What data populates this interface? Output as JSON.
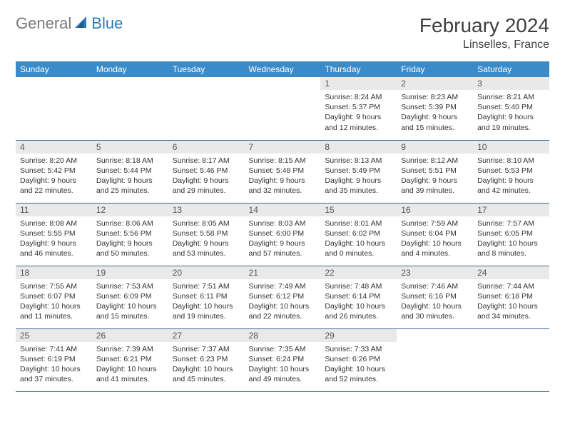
{
  "logo": {
    "part1": "General",
    "part2": "Blue"
  },
  "title": "February 2024",
  "location": "Linselles, France",
  "colors": {
    "header_bg": "#3b8bc8",
    "header_text": "#ffffff",
    "daynum_bg": "#e9e9e9",
    "border": "#3b6a93",
    "logo_gray": "#7a7a7a",
    "logo_blue": "#2b7bb9"
  },
  "day_headers": [
    "Sunday",
    "Monday",
    "Tuesday",
    "Wednesday",
    "Thursday",
    "Friday",
    "Saturday"
  ],
  "weeks": [
    [
      null,
      null,
      null,
      null,
      {
        "n": "1",
        "sr": "Sunrise: 8:24 AM",
        "ss": "Sunset: 5:37 PM",
        "d1": "Daylight: 9 hours",
        "d2": "and 12 minutes."
      },
      {
        "n": "2",
        "sr": "Sunrise: 8:23 AM",
        "ss": "Sunset: 5:39 PM",
        "d1": "Daylight: 9 hours",
        "d2": "and 15 minutes."
      },
      {
        "n": "3",
        "sr": "Sunrise: 8:21 AM",
        "ss": "Sunset: 5:40 PM",
        "d1": "Daylight: 9 hours",
        "d2": "and 19 minutes."
      }
    ],
    [
      {
        "n": "4",
        "sr": "Sunrise: 8:20 AM",
        "ss": "Sunset: 5:42 PM",
        "d1": "Daylight: 9 hours",
        "d2": "and 22 minutes."
      },
      {
        "n": "5",
        "sr": "Sunrise: 8:18 AM",
        "ss": "Sunset: 5:44 PM",
        "d1": "Daylight: 9 hours",
        "d2": "and 25 minutes."
      },
      {
        "n": "6",
        "sr": "Sunrise: 8:17 AM",
        "ss": "Sunset: 5:46 PM",
        "d1": "Daylight: 9 hours",
        "d2": "and 29 minutes."
      },
      {
        "n": "7",
        "sr": "Sunrise: 8:15 AM",
        "ss": "Sunset: 5:48 PM",
        "d1": "Daylight: 9 hours",
        "d2": "and 32 minutes."
      },
      {
        "n": "8",
        "sr": "Sunrise: 8:13 AM",
        "ss": "Sunset: 5:49 PM",
        "d1": "Daylight: 9 hours",
        "d2": "and 35 minutes."
      },
      {
        "n": "9",
        "sr": "Sunrise: 8:12 AM",
        "ss": "Sunset: 5:51 PM",
        "d1": "Daylight: 9 hours",
        "d2": "and 39 minutes."
      },
      {
        "n": "10",
        "sr": "Sunrise: 8:10 AM",
        "ss": "Sunset: 5:53 PM",
        "d1": "Daylight: 9 hours",
        "d2": "and 42 minutes."
      }
    ],
    [
      {
        "n": "11",
        "sr": "Sunrise: 8:08 AM",
        "ss": "Sunset: 5:55 PM",
        "d1": "Daylight: 9 hours",
        "d2": "and 46 minutes."
      },
      {
        "n": "12",
        "sr": "Sunrise: 8:06 AM",
        "ss": "Sunset: 5:56 PM",
        "d1": "Daylight: 9 hours",
        "d2": "and 50 minutes."
      },
      {
        "n": "13",
        "sr": "Sunrise: 8:05 AM",
        "ss": "Sunset: 5:58 PM",
        "d1": "Daylight: 9 hours",
        "d2": "and 53 minutes."
      },
      {
        "n": "14",
        "sr": "Sunrise: 8:03 AM",
        "ss": "Sunset: 6:00 PM",
        "d1": "Daylight: 9 hours",
        "d2": "and 57 minutes."
      },
      {
        "n": "15",
        "sr": "Sunrise: 8:01 AM",
        "ss": "Sunset: 6:02 PM",
        "d1": "Daylight: 10 hours",
        "d2": "and 0 minutes."
      },
      {
        "n": "16",
        "sr": "Sunrise: 7:59 AM",
        "ss": "Sunset: 6:04 PM",
        "d1": "Daylight: 10 hours",
        "d2": "and 4 minutes."
      },
      {
        "n": "17",
        "sr": "Sunrise: 7:57 AM",
        "ss": "Sunset: 6:05 PM",
        "d1": "Daylight: 10 hours",
        "d2": "and 8 minutes."
      }
    ],
    [
      {
        "n": "18",
        "sr": "Sunrise: 7:55 AM",
        "ss": "Sunset: 6:07 PM",
        "d1": "Daylight: 10 hours",
        "d2": "and 11 minutes."
      },
      {
        "n": "19",
        "sr": "Sunrise: 7:53 AM",
        "ss": "Sunset: 6:09 PM",
        "d1": "Daylight: 10 hours",
        "d2": "and 15 minutes."
      },
      {
        "n": "20",
        "sr": "Sunrise: 7:51 AM",
        "ss": "Sunset: 6:11 PM",
        "d1": "Daylight: 10 hours",
        "d2": "and 19 minutes."
      },
      {
        "n": "21",
        "sr": "Sunrise: 7:49 AM",
        "ss": "Sunset: 6:12 PM",
        "d1": "Daylight: 10 hours",
        "d2": "and 22 minutes."
      },
      {
        "n": "22",
        "sr": "Sunrise: 7:48 AM",
        "ss": "Sunset: 6:14 PM",
        "d1": "Daylight: 10 hours",
        "d2": "and 26 minutes."
      },
      {
        "n": "23",
        "sr": "Sunrise: 7:46 AM",
        "ss": "Sunset: 6:16 PM",
        "d1": "Daylight: 10 hours",
        "d2": "and 30 minutes."
      },
      {
        "n": "24",
        "sr": "Sunrise: 7:44 AM",
        "ss": "Sunset: 6:18 PM",
        "d1": "Daylight: 10 hours",
        "d2": "and 34 minutes."
      }
    ],
    [
      {
        "n": "25",
        "sr": "Sunrise: 7:41 AM",
        "ss": "Sunset: 6:19 PM",
        "d1": "Daylight: 10 hours",
        "d2": "and 37 minutes."
      },
      {
        "n": "26",
        "sr": "Sunrise: 7:39 AM",
        "ss": "Sunset: 6:21 PM",
        "d1": "Daylight: 10 hours",
        "d2": "and 41 minutes."
      },
      {
        "n": "27",
        "sr": "Sunrise: 7:37 AM",
        "ss": "Sunset: 6:23 PM",
        "d1": "Daylight: 10 hours",
        "d2": "and 45 minutes."
      },
      {
        "n": "28",
        "sr": "Sunrise: 7:35 AM",
        "ss": "Sunset: 6:24 PM",
        "d1": "Daylight: 10 hours",
        "d2": "and 49 minutes."
      },
      {
        "n": "29",
        "sr": "Sunrise: 7:33 AM",
        "ss": "Sunset: 6:26 PM",
        "d1": "Daylight: 10 hours",
        "d2": "and 52 minutes."
      },
      null,
      null
    ]
  ]
}
